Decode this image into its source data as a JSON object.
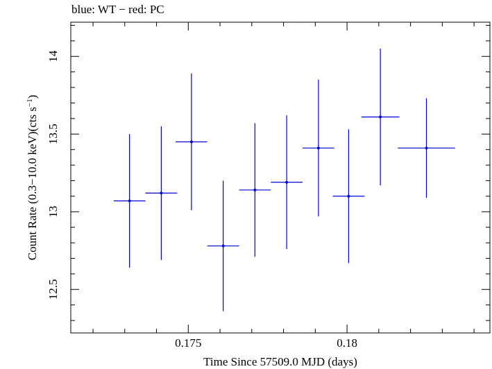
{
  "chart_data": {
    "type": "scatter",
    "title": "blue: WT − red: PC",
    "xlabel": "Time Since 57509.0 MJD (days)",
    "ylabel_main": "Count Rate (0.3−10.0 keV)(cts s",
    "ylabel_sup": "−1",
    "ylabel_close": ")",
    "xlim": [
      0.1713,
      0.1845
    ],
    "ylim": [
      12.22,
      14.22
    ],
    "x_ticks": [
      {
        "value": 0.175,
        "label": "0.175"
      },
      {
        "value": 0.18,
        "label": "0.18"
      }
    ],
    "y_ticks": [
      {
        "value": 12.5,
        "label": "12.5"
      },
      {
        "value": 13,
        "label": "13"
      },
      {
        "value": 13.5,
        "label": "13.5"
      },
      {
        "value": 14,
        "label": "14"
      }
    ],
    "x_minor_step": 0.001,
    "y_minor_step": 0.1,
    "grid": false,
    "series": [
      {
        "name": "WT",
        "color": "#0000dd",
        "points": [
          {
            "x": 0.17315,
            "xerr": 0.0005,
            "y": 13.07,
            "yerr": 0.43
          },
          {
            "x": 0.17415,
            "xerr": 0.0005,
            "y": 13.12,
            "yerr": 0.43
          },
          {
            "x": 0.1751,
            "xerr": 0.0005,
            "y": 13.45,
            "yerr": 0.44
          },
          {
            "x": 0.1761,
            "xerr": 0.0005,
            "y": 12.78,
            "yerr": 0.42
          },
          {
            "x": 0.1771,
            "xerr": 0.0005,
            "y": 13.14,
            "yerr": 0.43
          },
          {
            "x": 0.1781,
            "xerr": 0.0005,
            "y": 13.19,
            "yerr": 0.43
          },
          {
            "x": 0.1791,
            "xerr": 0.0005,
            "y": 13.41,
            "yerr": 0.44
          },
          {
            "x": 0.18005,
            "xerr": 0.0005,
            "y": 13.1,
            "yerr": 0.43
          },
          {
            "x": 0.18105,
            "xerr": 0.0006,
            "y": 13.61,
            "yerr": 0.44
          },
          {
            "x": 0.1825,
            "xerr": 0.0009,
            "y": 13.41,
            "yerr": 0.32
          }
        ]
      }
    ]
  }
}
